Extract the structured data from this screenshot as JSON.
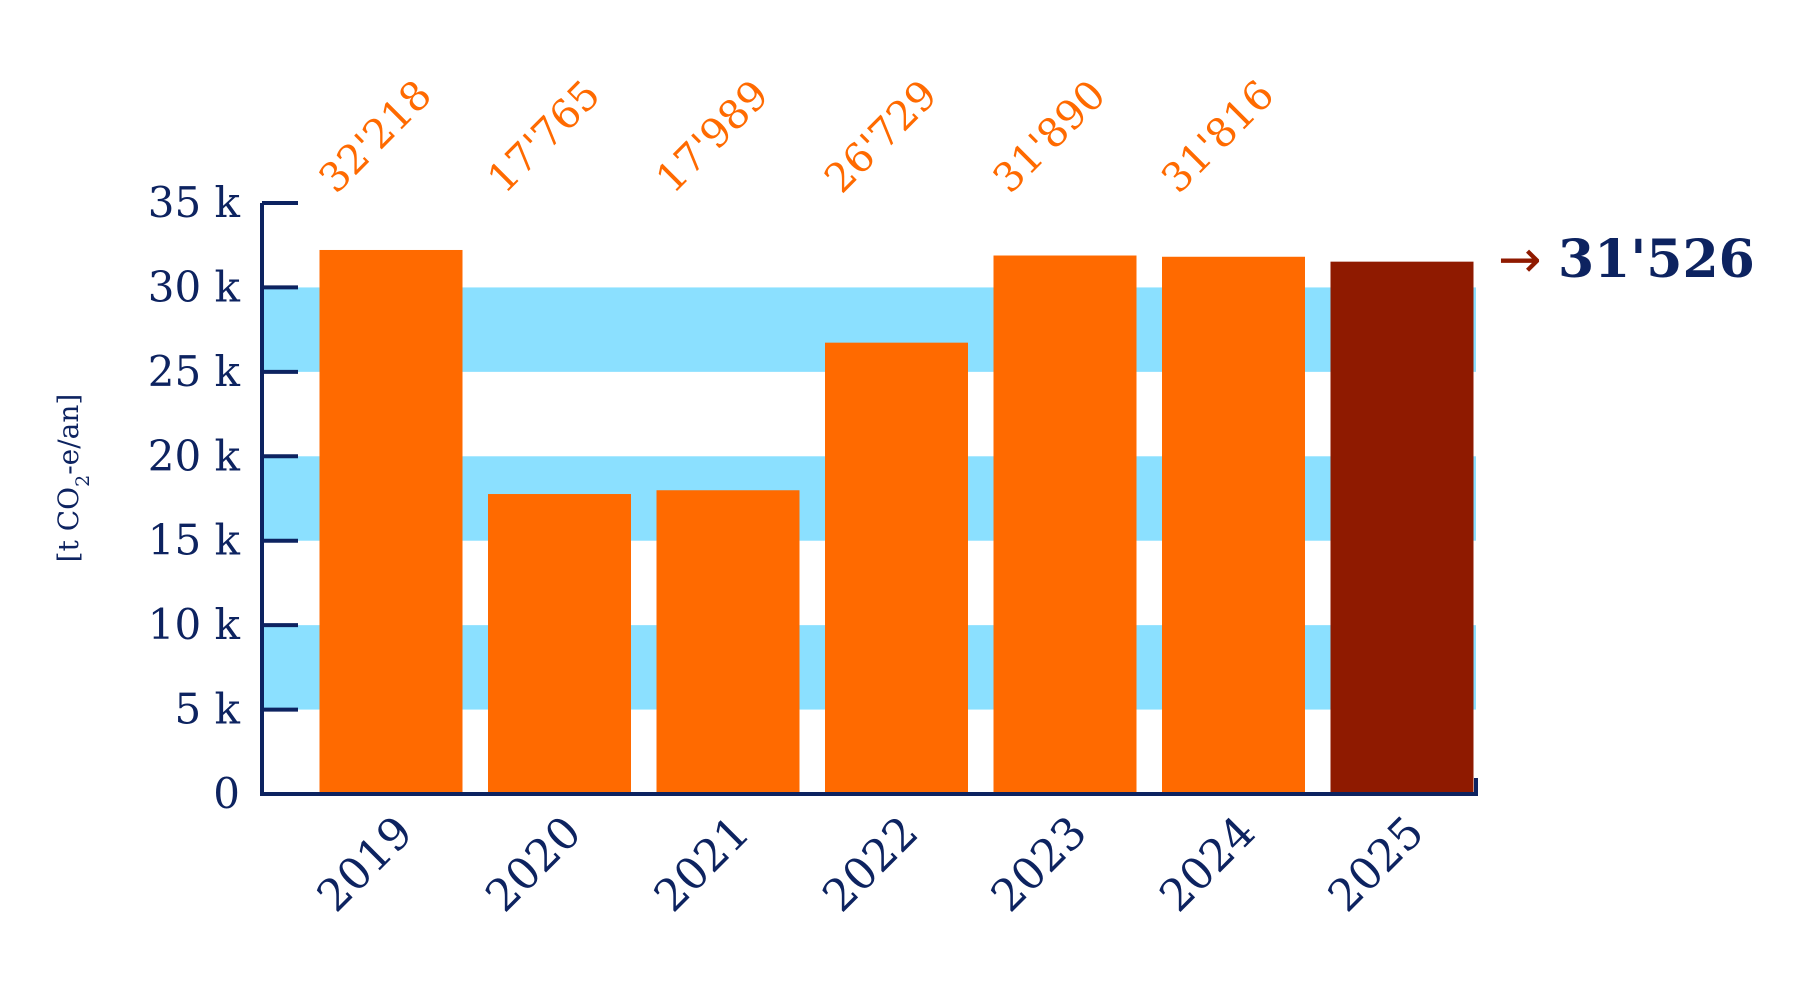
{
  "chart_data": {
    "type": "bar",
    "categories": [
      "2019",
      "2020",
      "2021",
      "2022",
      "2023",
      "2024",
      "2025"
    ],
    "values": [
      32218,
      17765,
      17989,
      26729,
      31890,
      31816,
      31526
    ],
    "value_labels": [
      "32'218",
      "17'765",
      "17'989",
      "26'729",
      "31'890",
      "31'816",
      ""
    ],
    "ylabel_prefix": "[t CO",
    "ylabel_subscript": "2",
    "ylabel_suffix": "-e/an]",
    "ylim": [
      0,
      35000
    ],
    "y_ticks": [
      0,
      5000,
      10000,
      15000,
      20000,
      25000,
      30000,
      35000
    ],
    "y_tick_labels": [
      "0",
      "5 k",
      "10 k",
      "15 k",
      "20 k",
      "25 k",
      "30 k",
      "35 k"
    ],
    "grid": "alternating horizontal bands",
    "highlight": {
      "category": "2025",
      "arrow": "→",
      "label": "31'526"
    },
    "colors": {
      "bar": "#ff6a00",
      "highlight_bar": "#8f1a00",
      "band": "#8be0ff",
      "axis": "#0d2360",
      "value_label": "#ff6a00",
      "arrow": "#8f1a00"
    }
  }
}
